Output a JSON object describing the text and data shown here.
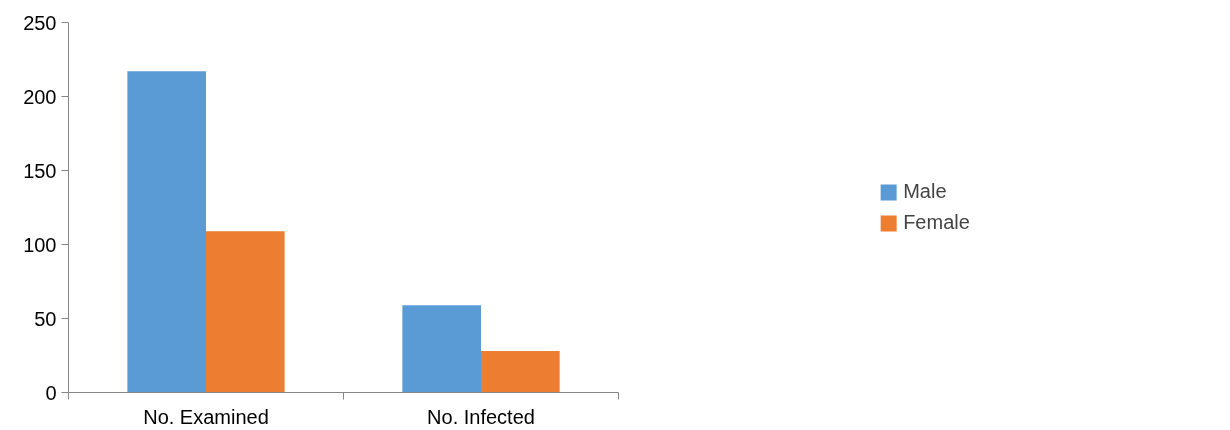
{
  "chart_data": {
    "type": "bar",
    "categories": [
      "No. Examined",
      "No. Infected"
    ],
    "series": [
      {
        "name": "Male",
        "color": "#5b9bd5",
        "values": [
          217,
          59
        ]
      },
      {
        "name": "Female",
        "color": "#ed7d31",
        "values": [
          109,
          28
        ]
      }
    ],
    "ylim": [
      0,
      250
    ],
    "yticks": [
      0,
      50,
      100,
      150,
      200,
      250
    ],
    "grid": false,
    "legend": "right"
  }
}
